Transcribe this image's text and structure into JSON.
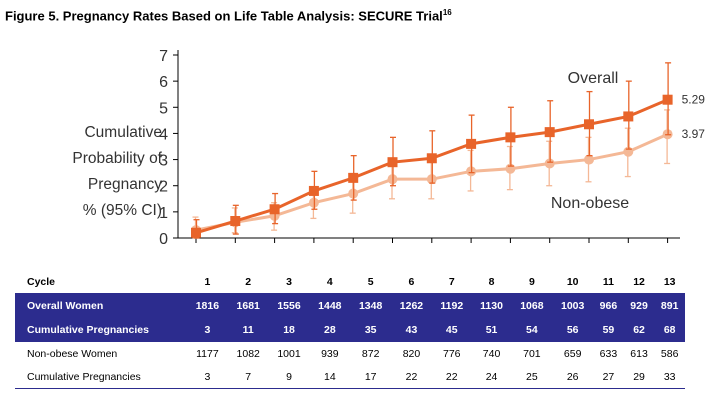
{
  "figure_title": "Figure 5. Pregnancy Rates Based on Life Table Analysis: SECURE Trial",
  "figure_ref": "16",
  "ylabel_lines": [
    "Cumulative",
    "Probability of",
    "Pregnancy",
    "% (95% CI)"
  ],
  "colors": {
    "overall": "#e8642a",
    "nonobese": "#f4b896",
    "table_header": "#2c2c8e",
    "axis": "#000000"
  },
  "chart_data": {
    "type": "line",
    "title": "Pregnancy Rates Based on Life Table Analysis: SECURE Trial",
    "xlabel": "Cycle",
    "ylabel": "Cumulative Probability of Pregnancy % (95% CI)",
    "x": [
      1,
      2,
      3,
      4,
      5,
      6,
      7,
      8,
      9,
      10,
      11,
      12,
      13
    ],
    "ylim": [
      0,
      7
    ],
    "yticks": [
      0,
      1,
      2,
      3,
      4,
      5,
      6,
      7
    ],
    "grid": false,
    "series": [
      {
        "name": "Overall",
        "end_label": "5.29",
        "marker": "square",
        "values": [
          0.2,
          0.65,
          1.1,
          1.8,
          2.3,
          2.9,
          3.05,
          3.6,
          3.85,
          4.05,
          4.35,
          4.65,
          5.29
        ],
        "upper": [
          0.7,
          1.25,
          1.7,
          2.55,
          3.15,
          3.85,
          4.1,
          4.7,
          5.0,
          5.25,
          5.6,
          6.0,
          6.7
        ],
        "lower": [
          0.0,
          0.15,
          0.55,
          1.1,
          1.45,
          2.0,
          2.1,
          2.5,
          2.75,
          2.9,
          3.15,
          3.4,
          3.95
        ]
      },
      {
        "name": "Non-obese",
        "end_label": "3.97",
        "marker": "circle",
        "values": [
          0.3,
          0.6,
          0.85,
          1.35,
          1.7,
          2.25,
          2.25,
          2.55,
          2.65,
          2.85,
          3.0,
          3.3,
          3.97
        ],
        "upper": [
          0.8,
          1.15,
          1.35,
          1.95,
          2.4,
          3.0,
          3.0,
          3.35,
          3.5,
          3.7,
          3.85,
          4.2,
          4.9
        ],
        "lower": [
          0.0,
          0.2,
          0.3,
          0.75,
          0.95,
          1.5,
          1.5,
          1.8,
          1.85,
          2.0,
          2.15,
          2.35,
          2.85
        ]
      }
    ]
  },
  "table": {
    "header_label": "Cycle",
    "cycles": [
      "1",
      "2",
      "3",
      "4",
      "5",
      "6",
      "7",
      "8",
      "9",
      "10",
      "11",
      "12",
      "13"
    ],
    "rows": [
      {
        "label": "Overall Women",
        "style": "dark",
        "values": [
          "1816",
          "1681",
          "1556",
          "1448",
          "1348",
          "1262",
          "1192",
          "1130",
          "1068",
          "1003",
          "966",
          "929",
          "891"
        ]
      },
      {
        "label": "Cumulative Pregnancies",
        "style": "dark",
        "values": [
          "3",
          "11",
          "18",
          "28",
          "35",
          "43",
          "45",
          "51",
          "54",
          "56",
          "59",
          "62",
          "68"
        ]
      },
      {
        "label": "Non-obese Women",
        "style": "light",
        "values": [
          "1177",
          "1082",
          "1001",
          "939",
          "872",
          "820",
          "776",
          "740",
          "701",
          "659",
          "633",
          "613",
          "586"
        ]
      },
      {
        "label": "Cumulative Pregnancies",
        "style": "light",
        "values": [
          "3",
          "7",
          "9",
          "14",
          "17",
          "22",
          "22",
          "24",
          "25",
          "26",
          "27",
          "29",
          "33"
        ]
      }
    ]
  }
}
